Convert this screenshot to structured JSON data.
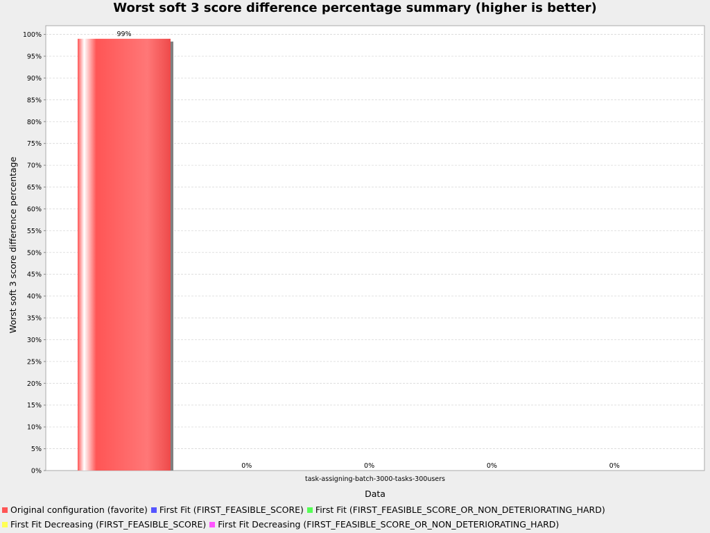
{
  "chart_data": {
    "type": "bar",
    "title": "Worst soft 3 score difference percentage summary (higher is better)",
    "xlabel": "Data",
    "ylabel": "Worst soft 3 score difference percentage",
    "categories": [
      "task-assigning-batch-3000-tasks-300users"
    ],
    "ylim": [
      0,
      1.02
    ],
    "yticks": [
      "0%",
      "5%",
      "10%",
      "15%",
      "20%",
      "25%",
      "30%",
      "35%",
      "40%",
      "45%",
      "50%",
      "55%",
      "60%",
      "65%",
      "70%",
      "75%",
      "80%",
      "85%",
      "90%",
      "95%",
      "100%"
    ],
    "grid": true,
    "legend_position": "bottom",
    "series": [
      {
        "name": "Original configuration (favorite)",
        "values": [
          0.99
        ],
        "label": "99%",
        "color": "#ff5555"
      },
      {
        "name": "First Fit (FIRST_FEASIBLE_SCORE)",
        "values": [
          0
        ],
        "label": "0%",
        "color": "#5555ff"
      },
      {
        "name": "First Fit (FIRST_FEASIBLE_SCORE_OR_NON_DETERIORATING_HARD)",
        "values": [
          0
        ],
        "label": "0%",
        "color": "#55ff55"
      },
      {
        "name": "First Fit Decreasing (FIRST_FEASIBLE_SCORE)",
        "values": [
          0
        ],
        "label": "0%",
        "color": "#ffff55"
      },
      {
        "name": "First Fit Decreasing (FIRST_FEASIBLE_SCORE_OR_NON_DETERIORATING_HARD)",
        "values": [
          0
        ],
        "label": "0%",
        "color": "#ff55ff"
      }
    ]
  }
}
